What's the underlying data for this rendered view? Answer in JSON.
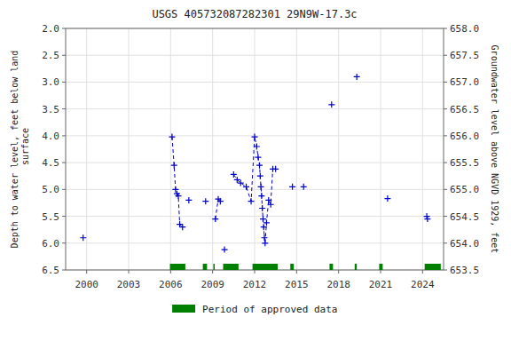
{
  "chart_data": {
    "type": "line",
    "title": "USGS 405732087282301 29N9W-17.3c",
    "y_label": "Depth to water level, feet below land\n surface",
    "y2_label": "Groundwater level above NGVD 1929, feet",
    "xlim": [
      1998.5,
      2025.5
    ],
    "ylim": [
      6.5,
      2.0
    ],
    "y2lim": [
      653.5,
      658.0
    ],
    "xticks": [
      2000,
      2003,
      2006,
      2009,
      2012,
      2015,
      2018,
      2021,
      2024
    ],
    "yticks": [
      {
        "value": 2.0,
        "label": "2.0"
      },
      2.5,
      {
        "value": 3.0,
        "label": "3.0"
      },
      3.5,
      {
        "value": 4.0,
        "label": "4.0"
      },
      4.5,
      {
        "value": 5.0,
        "label": "5.0"
      },
      5.5,
      {
        "value": 6.0,
        "label": "6.0"
      },
      6.5
    ],
    "y2ticks": [
      653.5,
      {
        "value": 654.0,
        "label": "654.0"
      },
      654.5,
      {
        "value": 655.0,
        "label": "655.0"
      },
      655.5,
      {
        "value": 656.0,
        "label": "656.0"
      },
      656.5,
      {
        "value": 657.0,
        "label": "657.0"
      },
      657.5,
      {
        "value": 658.0,
        "label": "658.0"
      }
    ],
    "grid": true,
    "legend": "bottom",
    "series": [
      {
        "type": "line",
        "line_style": "dashed",
        "marker": "plus",
        "color": "#0000cc",
        "x": [
          2006.1,
          2006.25,
          2006.35,
          2006.45,
          2006.55,
          2006.65,
          2006.85
        ],
        "values": [
          4.02,
          4.55,
          5.0,
          5.08,
          5.12,
          5.65,
          5.7
        ]
      },
      {
        "type": "line",
        "line_style": "dashed",
        "marker": "plus",
        "color": "#0000cc",
        "x": [
          2009.2,
          2009.4,
          2009.55
        ],
        "values": [
          5.55,
          5.18,
          5.22
        ]
      },
      {
        "type": "line",
        "line_style": "dashed",
        "marker": "plus",
        "color": "#0000cc",
        "x": [
          2010.5,
          2010.75,
          2011.0,
          2011.4,
          2011.75,
          2012.0,
          2012.15,
          2012.25,
          2012.35,
          2012.4,
          2012.45,
          2012.5,
          2012.55,
          2012.6,
          2012.65,
          2012.7,
          2012.75,
          2012.85,
          2013.0,
          2013.15,
          2013.3,
          2013.5
        ],
        "values": [
          4.72,
          4.82,
          4.88,
          4.95,
          5.22,
          4.02,
          4.2,
          4.4,
          4.55,
          4.75,
          4.95,
          5.12,
          5.35,
          5.55,
          5.7,
          5.9,
          6.0,
          5.62,
          5.2,
          5.28,
          4.62,
          4.62
        ]
      },
      {
        "type": "scatter",
        "marker": "plus",
        "color": "#0000cc",
        "x": [
          1999.75,
          2007.3,
          2008.5,
          2009.85,
          2014.7,
          2015.5,
          2017.5,
          2019.3,
          2021.5,
          2024.3,
          2024.35
        ],
        "values": [
          5.9,
          5.2,
          5.22,
          6.12,
          4.95,
          4.95,
          3.42,
          2.9,
          5.17,
          5.5,
          5.55
        ]
      }
    ],
    "periods": {
      "name": "Period of approved data",
      "color": "#008000",
      "ranges": [
        [
          2005.95,
          2007.05
        ],
        [
          2008.3,
          2008.6
        ],
        [
          2009.05,
          2009.15
        ],
        [
          2009.75,
          2010.85
        ],
        [
          2011.85,
          2013.65
        ],
        [
          2014.55,
          2014.8
        ],
        [
          2017.35,
          2017.6
        ],
        [
          2019.15,
          2019.3
        ],
        [
          2020.9,
          2021.15
        ],
        [
          2024.15,
          2025.3
        ]
      ]
    }
  }
}
